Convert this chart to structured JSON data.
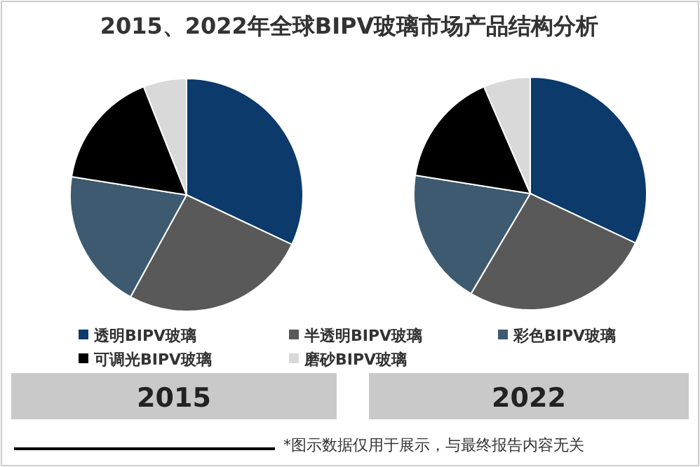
{
  "chart_data": [
    {
      "type": "pie",
      "title": "2015、2022年全球BIPV玻璃市场产品结构分析",
      "subtitle": "2015",
      "categories": [
        "透明BIPV玻璃",
        "半透明BIPV玻璃",
        "彩色BIPV玻璃",
        "可调光BIPV玻璃",
        "磨砂BIPV玻璃"
      ],
      "values": [
        32,
        26,
        19.5,
        16.5,
        6
      ],
      "colors": [
        "#0b3a6b",
        "#595959",
        "#3d5a70",
        "#000000",
        "#d9d9d9"
      ],
      "legend": "bottom"
    },
    {
      "type": "pie",
      "subtitle": "2022",
      "categories": [
        null,
        null,
        null,
        null,
        null
      ],
      "values": [
        32,
        26.5,
        19,
        16,
        6.5
      ],
      "colors": [
        "#0b3a6b",
        "#595959",
        "#3d5a70",
        "#000000",
        "#d9d9d9"
      ],
      "annotations": [
        "*图示数据仅用于展示，与最终报告内容无关"
      ]
    }
  ]
}
